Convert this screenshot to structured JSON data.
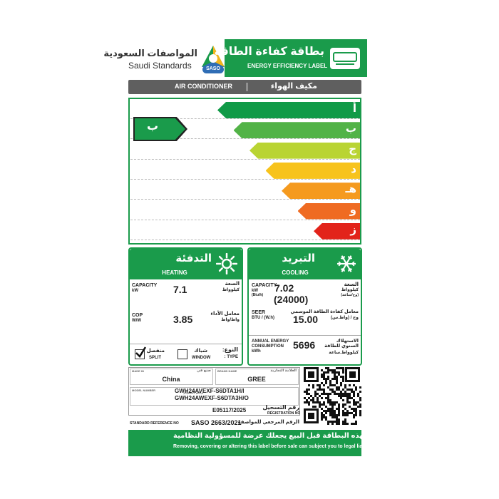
{
  "header": {
    "org_arabic": "المواصفات السعودية",
    "org": "Saudi Standards",
    "logo": "SASO",
    "title_arabic": "بطاقة كفاءة الطاقة",
    "title": "ENERGY EFFICIENCY LABEL"
  },
  "product": {
    "name": "AIR CONDITIONER",
    "name_arabic": "مكيف الهواء"
  },
  "scale": {
    "grades": [
      "أ",
      "ب",
      "ج",
      "د",
      "هـ",
      "و",
      "ز"
    ],
    "colors": [
      "#109a47",
      "#52b347",
      "#b9d433",
      "#f7c31c",
      "#f59a1e",
      "#ef6b22",
      "#e2231a"
    ],
    "rating": "ب"
  },
  "heating": {
    "title_arabic": "التدفئة",
    "title": "HEATING",
    "rows": [
      {
        "label": "CAPACITY",
        "unit": "kW",
        "label_arabic": "السعة",
        "unit_arabic": "كيلوواط",
        "value": "7.1"
      },
      {
        "label": "COP",
        "unit": "W/W",
        "label_arabic": "معامل الأداء",
        "unit_arabic": "واط/واط",
        "value": "3.85"
      }
    ]
  },
  "cooling": {
    "title_arabic": "التبريد",
    "title": "COOLING",
    "rows": [
      {
        "label": "CAPACITY",
        "unit": "kW",
        "unit2": "(Btu/h)",
        "label_arabic": "السعة",
        "unit_arabic": "كيلوواط",
        "unit2_arabic": "(وح/ساعة)",
        "value": "7.02",
        "value2": "(24000)"
      },
      {
        "label": "SEER",
        "unit": "BTU / (W.h)",
        "label_arabic": "معامل كفاءة الطاقة الموسمي",
        "unit_arabic": "وح / (واط.س)",
        "value": "15.00"
      },
      {
        "label": "ANNUAL ENERGY CONSUMPTION",
        "unit": "kWh",
        "label_arabic": "الاستهلاك السنوي للطاقة",
        "unit_arabic": "كيلوواط.ساعة",
        "value": "5696"
      }
    ]
  },
  "type": {
    "label_arabic": "النوع:",
    "label": "TYPE :",
    "options": [
      {
        "label_arabic": "منفصل",
        "label": "SPLIT",
        "checked": true
      },
      {
        "label_arabic": "شباك",
        "label": "WINDOW",
        "checked": false
      }
    ]
  },
  "info": {
    "made_in_label": "MADE IN",
    "made_in_label_arabic": "صنع في",
    "made_in": "China",
    "brand_label": "BRAND NAME",
    "brand_label_arabic": "العلامة التجارية",
    "brand": "GREE",
    "model_label": "MODEL NUMBER",
    "model_label_arabic": "رقم الطراز",
    "models": [
      "GWH24AVEXF-S6DTA1H/I",
      "GWH24AWEXF-S6DTA3H/O"
    ],
    "registration_label_arabic": "رقم التسجيل",
    "registration_label": "REGISTRATION NO",
    "registration": "E05117/2025",
    "standard_label": "STANDARD REFERENCE NO",
    "standard": "SASO 2663/2021",
    "standard_label_arabic": "الرقم المرجعي للمواصفة"
  },
  "footer": {
    "warning_arabic": "إزالة أو تغطية أو العبث بهذه البطاقة قبل البيع يجعلك عرضة للمسؤولية النظامية",
    "warning": "Removing, covering or altering this label before sale can subject you to legal liability"
  }
}
